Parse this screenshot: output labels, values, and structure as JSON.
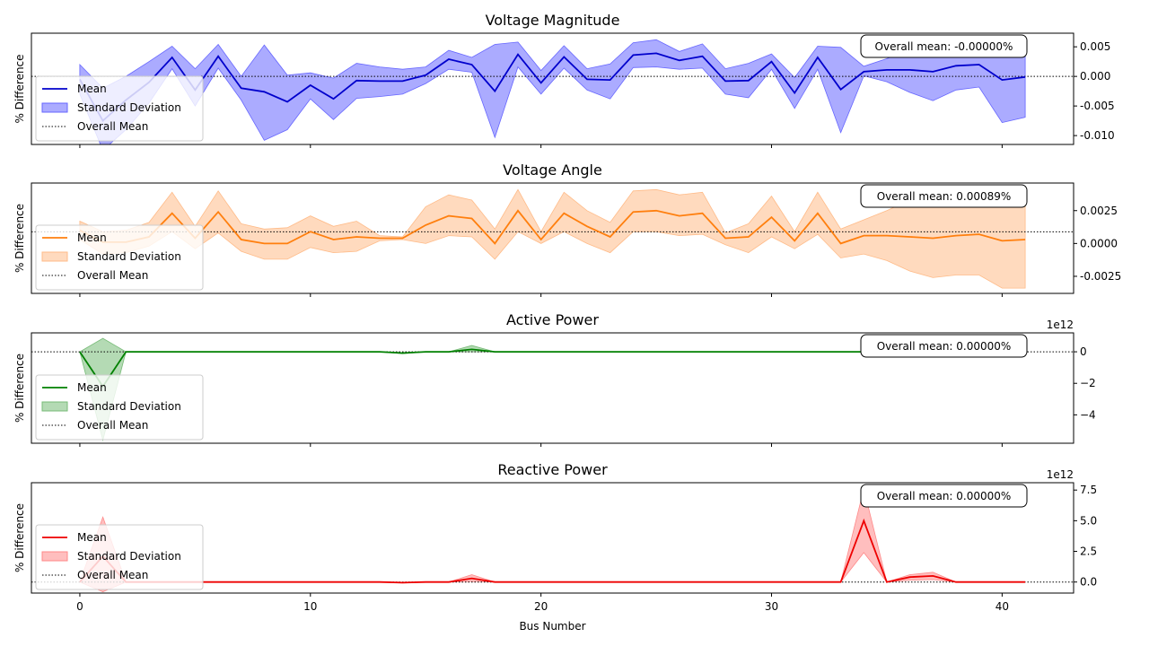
{
  "figure": {
    "xlabel": "Bus Number",
    "x_ticks": [
      0,
      10,
      20,
      30,
      40
    ],
    "legend": {
      "mean": "Mean",
      "std": "Standard Deviation",
      "overall": "Overall Mean"
    }
  },
  "chart_data": [
    {
      "type": "line",
      "title": "Voltage Magnitude",
      "ylabel": "% Difference",
      "color": "#0000cc",
      "fill_color": "#6666ff",
      "y_ticks": [
        "0.005",
        "0.000",
        "-0.005",
        "-0.010"
      ],
      "y_tick_values": [
        0.005,
        0.0,
        -0.005,
        -0.01
      ],
      "ylim": [
        -0.0115,
        0.0073
      ],
      "offset_label": "",
      "overall_mean": 0.0,
      "annotation": "Overall mean: -0.00000%",
      "x": [
        0,
        1,
        2,
        3,
        4,
        5,
        6,
        7,
        8,
        9,
        10,
        11,
        12,
        13,
        14,
        15,
        16,
        17,
        18,
        19,
        20,
        21,
        22,
        23,
        24,
        25,
        26,
        27,
        28,
        29,
        30,
        31,
        32,
        33,
        34,
        35,
        36,
        37,
        38,
        39,
        40,
        41
      ],
      "mean": [
        -0.0005,
        -0.0075,
        -0.004,
        -0.001,
        0.0032,
        -0.0023,
        0.0034,
        -0.002,
        -0.0026,
        -0.0043,
        -0.0015,
        -0.0038,
        -0.0007,
        -0.0008,
        -0.0008,
        0.0002,
        0.0029,
        0.002,
        -0.0025,
        0.0037,
        -0.0011,
        0.0033,
        -0.0005,
        -0.0006,
        0.0036,
        0.0039,
        0.0027,
        0.0034,
        -0.0008,
        -0.0007,
        0.0025,
        -0.0028,
        0.0032,
        -0.0022,
        0.0008,
        0.0011,
        0.0011,
        0.0008,
        0.0018,
        0.002,
        -0.0006,
        -0.0001
      ],
      "upper": [
        0.002,
        -0.002,
        0.0,
        0.0025,
        0.0051,
        0.0013,
        0.0054,
        0.0,
        0.0053,
        0.0002,
        0.0006,
        -0.0003,
        0.0022,
        0.0016,
        0.0012,
        0.0016,
        0.0044,
        0.0032,
        0.0054,
        0.0058,
        0.001,
        0.0052,
        0.0013,
        0.0021,
        0.0057,
        0.0062,
        0.0042,
        0.0055,
        0.0013,
        0.0022,
        0.0038,
        -0.0002,
        0.0051,
        0.0049,
        0.0017,
        0.003,
        0.0045,
        0.005,
        0.006,
        0.0065,
        0.0055,
        0.0055
      ],
      "lower": [
        -0.003,
        -0.0125,
        -0.009,
        -0.0045,
        0.0013,
        -0.005,
        0.0014,
        -0.004,
        -0.0108,
        -0.009,
        -0.0038,
        -0.0073,
        -0.0037,
        -0.0034,
        -0.003,
        -0.0012,
        0.0012,
        0.0007,
        -0.0103,
        0.0016,
        -0.003,
        0.0014,
        -0.0023,
        -0.0038,
        0.0015,
        0.0016,
        0.0012,
        0.0014,
        -0.003,
        -0.0036,
        0.0012,
        -0.0054,
        0.0012,
        -0.0095,
        0.0001,
        -0.0009,
        -0.0027,
        -0.0041,
        -0.0023,
        -0.0018,
        -0.0078,
        -0.0069
      ]
    },
    {
      "type": "line",
      "title": "Voltage Angle",
      "ylabel": "% Difference",
      "color": "#ff7f0e",
      "fill_color": "#ffbb88",
      "y_ticks": [
        "0.0025",
        "0.0000",
        "-0.0025"
      ],
      "y_tick_values": [
        0.0025,
        0.0,
        -0.0025
      ],
      "ylim": [
        -0.0038,
        0.0046
      ],
      "offset_label": "",
      "overall_mean": 0.00089,
      "annotation": "Overall mean: 0.00089%",
      "x": [
        0,
        1,
        2,
        3,
        4,
        5,
        6,
        7,
        8,
        9,
        10,
        11,
        12,
        13,
        14,
        15,
        16,
        17,
        18,
        19,
        20,
        21,
        22,
        23,
        24,
        25,
        26,
        27,
        28,
        29,
        30,
        31,
        32,
        33,
        34,
        35,
        36,
        37,
        38,
        39,
        40,
        41
      ],
      "mean": [
        0.001,
        0.0001,
        0.0001,
        0.0005,
        0.0023,
        0.0004,
        0.0024,
        0.0003,
        0.0,
        0.0,
        0.0009,
        0.0003,
        0.0005,
        0.0004,
        0.0004,
        0.0014,
        0.0021,
        0.0019,
        0.0,
        0.0025,
        0.0003,
        0.0023,
        0.0013,
        0.0005,
        0.0024,
        0.0025,
        0.0021,
        0.0023,
        0.0004,
        0.0005,
        0.002,
        0.0002,
        0.0023,
        0.0,
        0.0006,
        0.0006,
        0.0005,
        0.0004,
        0.0006,
        0.0007,
        0.0002,
        0.0003
      ],
      "upper": [
        0.0017,
        0.0009,
        0.001,
        0.0016,
        0.0039,
        0.0013,
        0.004,
        0.0015,
        0.0011,
        0.0012,
        0.0021,
        0.0013,
        0.0017,
        0.0006,
        0.0005,
        0.0028,
        0.0037,
        0.0033,
        0.0011,
        0.0041,
        0.0009,
        0.0039,
        0.0025,
        0.0016,
        0.004,
        0.0041,
        0.0037,
        0.0039,
        0.0008,
        0.0015,
        0.0036,
        0.0009,
        0.0039,
        0.0011,
        0.0018,
        0.0025,
        0.0033,
        0.0035,
        0.0036,
        0.0038,
        0.0036,
        0.0037
      ],
      "lower": [
        0.0003,
        -0.0008,
        -0.0007,
        -0.0002,
        0.0009,
        -0.0004,
        0.0008,
        -0.0006,
        -0.0012,
        -0.0012,
        -0.0003,
        -0.0007,
        -0.0006,
        0.0002,
        0.0003,
        0.0,
        0.0006,
        0.0005,
        -0.0012,
        0.0009,
        0.0,
        0.0009,
        0.0,
        -0.0007,
        0.0009,
        0.0009,
        0.0006,
        0.0007,
        -0.0001,
        -0.0007,
        0.0005,
        -0.0004,
        0.0007,
        -0.0011,
        -0.0008,
        -0.0013,
        -0.0021,
        -0.0026,
        -0.0024,
        -0.0024,
        -0.0034,
        -0.0034
      ]
    },
    {
      "type": "line",
      "title": "Active Power",
      "ylabel": "% Difference",
      "color": "#008000",
      "fill_color": "#77bb77",
      "y_ticks": [
        "0",
        "−2",
        "−4"
      ],
      "y_tick_values": [
        0,
        -2,
        -4
      ],
      "ylim": [
        -5.8,
        1.2
      ],
      "offset_label": "1e12",
      "overall_mean": 0.0,
      "annotation": "Overall mean: 0.00000%",
      "x": [
        0,
        1,
        2,
        3,
        4,
        5,
        6,
        7,
        8,
        9,
        10,
        11,
        12,
        13,
        14,
        15,
        16,
        17,
        18,
        19,
        20,
        21,
        22,
        23,
        24,
        25,
        26,
        27,
        28,
        29,
        30,
        31,
        32,
        33,
        34,
        35,
        36,
        37,
        38,
        39,
        40,
        41
      ],
      "mean": [
        0,
        -2.2,
        0,
        0,
        0,
        0,
        0,
        0,
        0,
        0,
        0,
        0,
        0,
        0,
        -0.08,
        0,
        0,
        0.15,
        0,
        0,
        0,
        0,
        0,
        0,
        0,
        0,
        0,
        0,
        0,
        0,
        0,
        0,
        0,
        0,
        0,
        0,
        0,
        0,
        0,
        0,
        0,
        0
      ],
      "upper": [
        0,
        0.85,
        0,
        0,
        0,
        0,
        0,
        0,
        0,
        0,
        0,
        0,
        0,
        0,
        -0.05,
        0,
        0,
        0.4,
        0,
        0,
        0,
        0,
        0,
        0,
        0,
        0,
        0,
        0,
        0,
        0,
        0,
        0,
        0,
        0,
        0,
        0,
        0,
        0,
        0,
        0,
        0,
        0
      ],
      "lower": [
        0,
        -5.6,
        0,
        0,
        0,
        0,
        0,
        0,
        0,
        0,
        0,
        0,
        0,
        0,
        -0.12,
        0,
        0,
        0,
        0,
        0,
        0,
        0,
        0,
        0,
        0,
        0,
        0,
        0,
        0,
        0,
        0,
        0,
        0,
        0,
        0,
        0,
        0,
        0,
        0,
        0,
        0,
        0
      ]
    },
    {
      "type": "line",
      "title": "Reactive Power",
      "ylabel": "% Difference",
      "color": "#ee0000",
      "fill_color": "#ff8888",
      "y_ticks": [
        "7.5",
        "5.0",
        "2.5",
        "0.0"
      ],
      "y_tick_values": [
        7.5,
        5.0,
        2.5,
        0.0
      ],
      "ylim": [
        -0.9,
        8.1
      ],
      "offset_label": "1e12",
      "overall_mean": 0.0,
      "annotation": "Overall mean: 0.00000%",
      "x": [
        0,
        1,
        2,
        3,
        4,
        5,
        6,
        7,
        8,
        9,
        10,
        11,
        12,
        13,
        14,
        15,
        16,
        17,
        18,
        19,
        20,
        21,
        22,
        23,
        24,
        25,
        26,
        27,
        28,
        29,
        30,
        31,
        32,
        33,
        34,
        35,
        36,
        37,
        38,
        39,
        40,
        41
      ],
      "mean": [
        0,
        2.1,
        0,
        0,
        0,
        0,
        0,
        0,
        0,
        0,
        0,
        0,
        0,
        0,
        -0.05,
        0,
        0,
        0.3,
        0,
        0,
        0,
        0,
        0,
        0,
        0,
        0,
        0,
        0,
        0,
        0,
        0,
        0,
        0,
        0,
        5.0,
        0,
        0.4,
        0.5,
        0,
        0,
        0,
        0
      ],
      "upper": [
        0,
        5.3,
        0,
        0,
        0,
        0,
        0,
        0,
        0,
        0,
        0,
        0,
        0,
        0,
        -0.02,
        0,
        0,
        0.6,
        0,
        0,
        0,
        0,
        0,
        0,
        0,
        0,
        0,
        0,
        0,
        0,
        0,
        0,
        0,
        0,
        7.6,
        0,
        0.6,
        0.8,
        0,
        0,
        0,
        0
      ],
      "lower": [
        0,
        -0.8,
        0,
        0,
        0,
        0,
        0,
        0,
        0,
        0,
        0,
        0,
        0,
        0,
        -0.08,
        0,
        0,
        0.05,
        0,
        0,
        0,
        0,
        0,
        0,
        0,
        0,
        0,
        0,
        0,
        0,
        0,
        0,
        0,
        0,
        2.4,
        0,
        0.15,
        0.2,
        0,
        0,
        0,
        0
      ]
    }
  ]
}
